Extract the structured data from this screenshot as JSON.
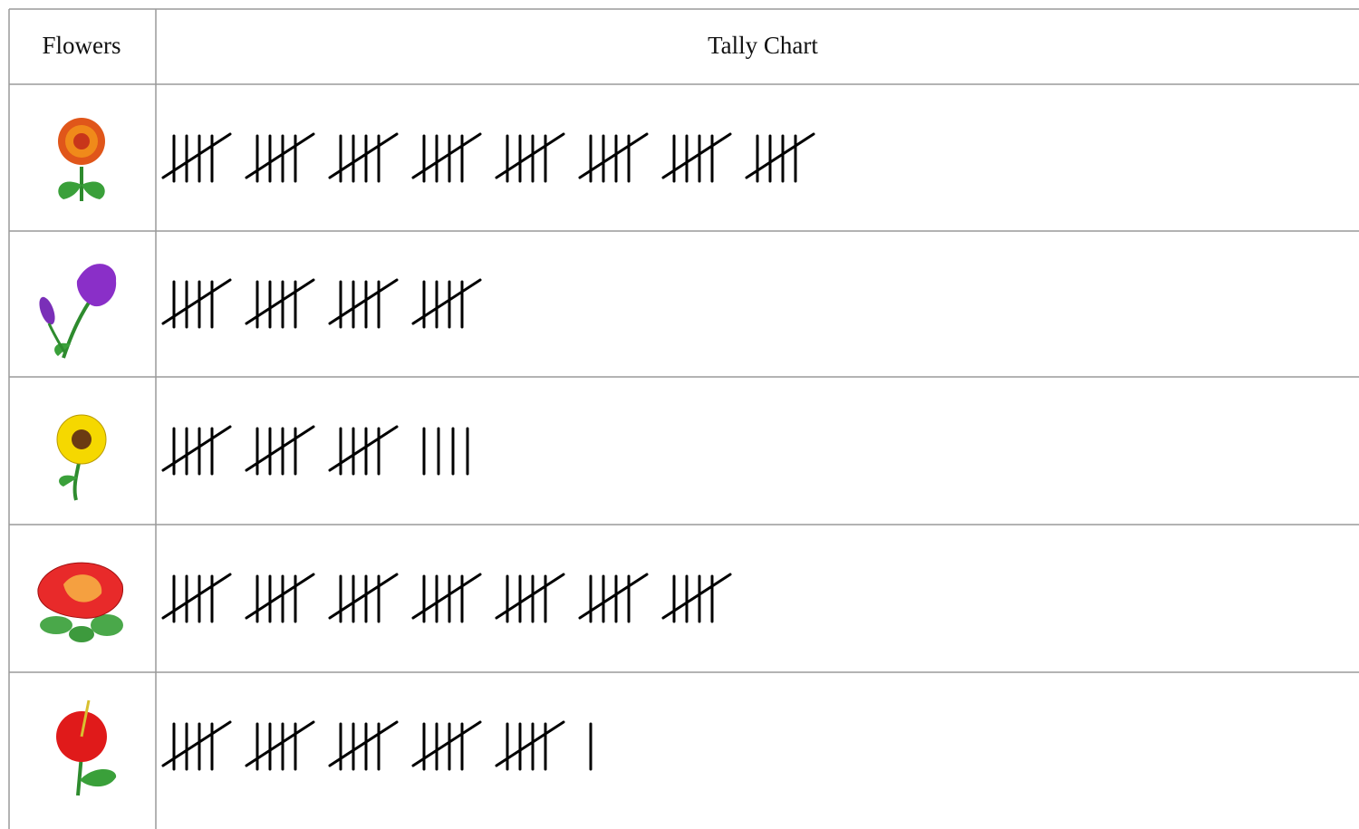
{
  "table": {
    "header": [
      "Flowers",
      "Tally Chart"
    ],
    "rows": [
      {
        "tally": 40
      },
      {
        "tally": 20
      },
      {
        "tally": 19
      },
      {
        "tally": 35
      },
      {
        "tally": 26
      }
    ]
  }
}
